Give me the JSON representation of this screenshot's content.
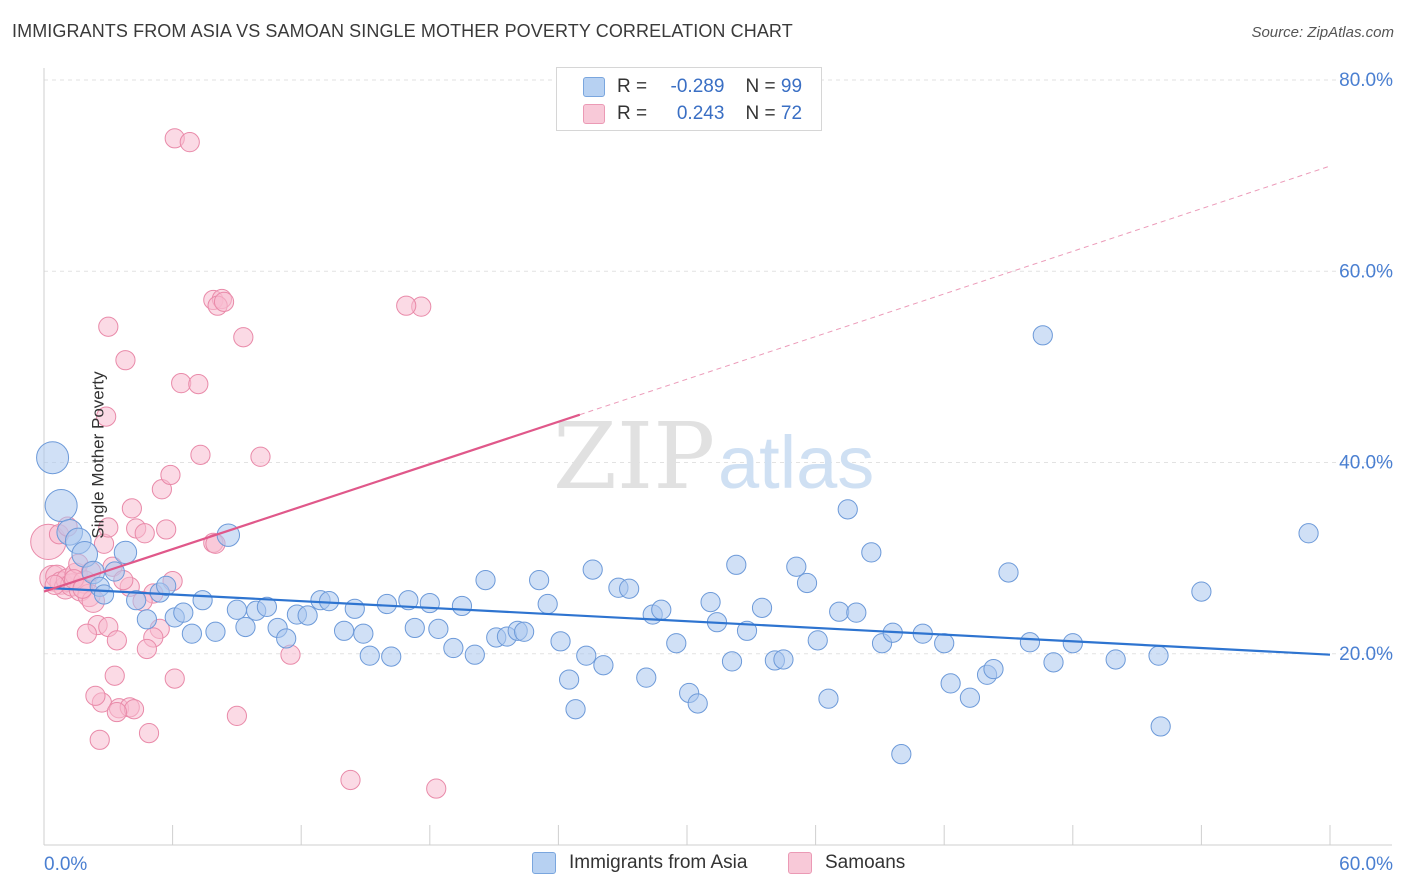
{
  "title": "IMMIGRANTS FROM ASIA VS SAMOAN SINGLE MOTHER POVERTY CORRELATION CHART",
  "source": "Source: ZipAtlas.com",
  "watermark": {
    "zip": "ZIP",
    "atlas": "atlas"
  },
  "legend": {
    "rows": [
      {
        "r_label": "R =",
        "r_value": "-0.289",
        "n_label": "N =",
        "n_value": "99"
      },
      {
        "r_label": "R =",
        "r_value": "0.243",
        "n_label": "N =",
        "n_value": "72"
      }
    ]
  },
  "bottom_legend": {
    "asia": "Immigrants from Asia",
    "samoans": "Samoans"
  },
  "colors": {
    "asia_fill": "#a9c7ef",
    "asia_stroke": "#6d9ad9",
    "asia_line": "#2e74d0",
    "samoa_fill": "#f7bccf",
    "samoa_stroke": "#e98aa9",
    "samoa_line": "#e0588a",
    "tick_label": "#4a7fd1",
    "grid": "#e2e2e2"
  },
  "chart_data": {
    "type": "scatter",
    "title": "IMMIGRANTS FROM ASIA VS SAMOAN SINGLE MOTHER POVERTY CORRELATION CHART",
    "xlabel": "",
    "ylabel": "Single Mother Poverty",
    "xlim": [
      0,
      60
    ],
    "ylim": [
      0,
      80
    ],
    "x_tick_labels": [
      "0.0%",
      "60.0%"
    ],
    "y_tick_labels": [
      "20.0%",
      "40.0%",
      "60.0%",
      "80.0%"
    ],
    "y_ticks": [
      20,
      40,
      60,
      80
    ],
    "grid": true,
    "legend_position": "top-center",
    "series": [
      {
        "name": "Immigrants from Asia",
        "trend": {
          "x": [
            0,
            60
          ],
          "y": [
            26.9,
            19.9
          ],
          "dashed_extension": false
        },
        "points": [
          [
            0.4,
            40.5,
            2
          ],
          [
            0.8,
            35.5,
            2
          ],
          [
            1.2,
            32.7,
            1.6
          ],
          [
            1.6,
            31.8,
            1.6
          ],
          [
            1.9,
            30.4,
            1.6
          ],
          [
            2.3,
            28.5,
            1.4
          ],
          [
            2.6,
            27,
            1.2
          ],
          [
            2.8,
            26.2,
            1.2
          ],
          [
            3.3,
            28.6,
            1.2
          ],
          [
            3.8,
            30.6,
            1.4
          ],
          [
            4.3,
            25.6,
            1.2
          ],
          [
            4.8,
            23.6,
            1.2
          ],
          [
            5.4,
            26.4,
            1.2
          ],
          [
            5.7,
            27.1,
            1.2
          ],
          [
            6.1,
            23.8,
            1.2
          ],
          [
            6.5,
            24.3,
            1.2
          ],
          [
            6.9,
            22.1,
            1.2
          ],
          [
            7.4,
            25.6,
            1.2
          ],
          [
            8.0,
            22.3,
            1.2
          ],
          [
            8.6,
            32.4,
            1.4
          ],
          [
            9.0,
            24.6,
            1.2
          ],
          [
            9.4,
            22.8,
            1.2
          ],
          [
            9.9,
            24.5,
            1.2
          ],
          [
            10.4,
            24.9,
            1.2
          ],
          [
            10.9,
            22.7,
            1.2
          ],
          [
            11.3,
            21.6,
            1.2
          ],
          [
            11.8,
            24.1,
            1.2
          ],
          [
            12.3,
            24,
            1.2
          ],
          [
            12.9,
            25.6,
            1.2
          ],
          [
            13.3,
            25.5,
            1.2
          ],
          [
            14.0,
            22.4,
            1.2
          ],
          [
            14.5,
            24.7,
            1.2
          ],
          [
            14.9,
            22.1,
            1.2
          ],
          [
            15.2,
            19.8,
            1.2
          ],
          [
            16.0,
            25.2,
            1.2
          ],
          [
            16.2,
            19.7,
            1.2
          ],
          [
            17.0,
            25.6,
            1.2
          ],
          [
            17.3,
            22.7,
            1.2
          ],
          [
            18.0,
            25.3,
            1.2
          ],
          [
            18.4,
            22.6,
            1.2
          ],
          [
            19.1,
            20.6,
            1.2
          ],
          [
            19.5,
            25,
            1.2
          ],
          [
            20.1,
            19.9,
            1.2
          ],
          [
            20.6,
            27.7,
            1.2
          ],
          [
            21.1,
            21.7,
            1.2
          ],
          [
            21.6,
            21.8,
            1.2
          ],
          [
            22.1,
            22.4,
            1.2
          ],
          [
            22.4,
            22.3,
            1.2
          ],
          [
            23.1,
            27.7,
            1.2
          ],
          [
            23.5,
            25.2,
            1.2
          ],
          [
            24.1,
            21.3,
            1.2
          ],
          [
            24.5,
            17.3,
            1.2
          ],
          [
            24.8,
            14.2,
            1.2
          ],
          [
            25.3,
            19.8,
            1.2
          ],
          [
            25.6,
            28.8,
            1.2
          ],
          [
            26.1,
            18.8,
            1.2
          ],
          [
            26.8,
            26.9,
            1.2
          ],
          [
            27.3,
            26.8,
            1.2
          ],
          [
            28.1,
            17.5,
            1.2
          ],
          [
            28.4,
            24.1,
            1.2
          ],
          [
            28.8,
            24.6,
            1.2
          ],
          [
            29.5,
            21.1,
            1.2
          ],
          [
            30.1,
            15.9,
            1.2
          ],
          [
            30.5,
            14.8,
            1.2
          ],
          [
            31.1,
            25.4,
            1.2
          ],
          [
            31.4,
            23.3,
            1.2
          ],
          [
            32.1,
            19.2,
            1.2
          ],
          [
            32.3,
            29.3,
            1.2
          ],
          [
            32.8,
            22.4,
            1.2
          ],
          [
            33.5,
            24.8,
            1.2
          ],
          [
            34.1,
            19.3,
            1.2
          ],
          [
            34.5,
            19.4,
            1.2
          ],
          [
            35.1,
            29.1,
            1.2
          ],
          [
            35.6,
            27.4,
            1.2
          ],
          [
            36.1,
            21.4,
            1.2
          ],
          [
            36.6,
            15.3,
            1.2
          ],
          [
            37.1,
            24.4,
            1.2
          ],
          [
            37.5,
            35.1,
            1.2
          ],
          [
            37.9,
            24.3,
            1.2
          ],
          [
            38.6,
            30.6,
            1.2
          ],
          [
            39.1,
            21.1,
            1.2
          ],
          [
            39.6,
            22.2,
            1.2
          ],
          [
            40.0,
            9.5,
            1.2
          ],
          [
            41.0,
            22.1,
            1.2
          ],
          [
            42.0,
            21.1,
            1.2
          ],
          [
            42.3,
            16.9,
            1.2
          ],
          [
            43.2,
            15.4,
            1.2
          ],
          [
            44.0,
            17.8,
            1.2
          ],
          [
            44.3,
            18.4,
            1.2
          ],
          [
            45.0,
            28.5,
            1.2
          ],
          [
            46.0,
            21.2,
            1.2
          ],
          [
            46.6,
            53.3,
            1.2
          ],
          [
            47.1,
            19.1,
            1.2
          ],
          [
            48.0,
            21.1,
            1.2
          ],
          [
            50.0,
            19.4,
            1.2
          ],
          [
            52.0,
            19.8,
            1.2
          ],
          [
            52.1,
            12.4,
            1.2
          ],
          [
            54.0,
            26.5,
            1.2
          ],
          [
            59.0,
            32.6,
            1.2
          ]
        ]
      },
      {
        "name": "Samoans",
        "trend": {
          "x": [
            0,
            25
          ],
          "y": [
            26.5,
            45
          ],
          "dashed_extension": true,
          "dashed_to": [
            60,
            71
          ]
        },
        "points": [
          [
            0.2,
            31.7,
            2.2
          ],
          [
            0.4,
            27.9,
            1.6
          ],
          [
            0.6,
            28.1,
            1.4
          ],
          [
            0.8,
            27.4,
            1.4
          ],
          [
            1.0,
            26.9,
            1.4
          ],
          [
            1.1,
            27.7,
            1.4
          ],
          [
            1.3,
            27.2,
            1.4
          ],
          [
            1.5,
            28.3,
            1.4
          ],
          [
            1.7,
            26.7,
            1.4
          ],
          [
            1.9,
            27.5,
            1.4
          ],
          [
            2.1,
            26.1,
            1.4
          ],
          [
            2.3,
            25.5,
            1.4
          ],
          [
            0.7,
            32.5,
            1.2
          ],
          [
            1.6,
            29.4,
            1.2
          ],
          [
            2.8,
            31.5,
            1.2
          ],
          [
            3.2,
            29.1,
            1.2
          ],
          [
            2.5,
            23,
            1.2
          ],
          [
            3.0,
            22.8,
            1.2
          ],
          [
            3.4,
            21.4,
            1.2
          ],
          [
            2.0,
            22.1,
            1.2
          ],
          [
            2.7,
            14.9,
            1.2
          ],
          [
            3.5,
            14.3,
            1.2
          ],
          [
            4.0,
            14.4,
            1.2
          ],
          [
            4.2,
            14.2,
            1.2
          ],
          [
            2.4,
            15.6,
            1.2
          ],
          [
            3.3,
            17.7,
            1.2
          ],
          [
            3.4,
            13.9,
            1.2
          ],
          [
            2.6,
            11,
            1.2
          ],
          [
            4.9,
            11.7,
            1.2
          ],
          [
            3.0,
            54.2,
            1.2
          ],
          [
            3.8,
            50.7,
            1.2
          ],
          [
            2.9,
            44.8,
            1.2
          ],
          [
            4.1,
            35.2,
            1.2
          ],
          [
            4.3,
            33.1,
            1.2
          ],
          [
            4.7,
            32.6,
            1.2
          ],
          [
            4.0,
            27,
            1.2
          ],
          [
            5.1,
            26.3,
            1.2
          ],
          [
            4.6,
            25.5,
            1.2
          ],
          [
            5.4,
            22.6,
            1.2
          ],
          [
            5.1,
            21.7,
            1.2
          ],
          [
            4.8,
            20.5,
            1.2
          ],
          [
            3.0,
            33.2,
            1.2
          ],
          [
            5.7,
            33,
            1.2
          ],
          [
            6.0,
            27.6,
            1.2
          ],
          [
            5.5,
            37.2,
            1.2
          ],
          [
            5.9,
            38.7,
            1.2
          ],
          [
            6.1,
            17.4,
            1.2
          ],
          [
            6.4,
            48.3,
            1.2
          ],
          [
            7.2,
            48.2,
            1.2
          ],
          [
            7.3,
            40.8,
            1.2
          ],
          [
            7.9,
            31.6,
            1.2
          ],
          [
            8.0,
            31.5,
            1.2
          ],
          [
            7.9,
            57,
            1.2
          ],
          [
            8.3,
            57.1,
            1.2
          ],
          [
            8.1,
            56.4,
            1.2
          ],
          [
            8.4,
            56.8,
            1.2
          ],
          [
            9.3,
            53.1,
            1.2
          ],
          [
            9.0,
            13.5,
            1.2
          ],
          [
            10.1,
            40.6,
            1.2
          ],
          [
            11.5,
            19.9,
            1.2
          ],
          [
            14.3,
            6.8,
            1.2
          ],
          [
            17.6,
            56.3,
            1.2
          ],
          [
            16.9,
            56.4,
            1.2
          ],
          [
            18.3,
            5.9,
            1.2
          ],
          [
            6.1,
            73.9,
            1.2
          ],
          [
            6.8,
            73.5,
            1.2
          ],
          [
            3.7,
            27.7,
            1.2
          ],
          [
            1.4,
            27.8,
            1.2
          ],
          [
            1.8,
            26.8,
            1.2
          ],
          [
            2.2,
            28.6,
            1.2
          ],
          [
            1.1,
            33.3,
            1.2
          ],
          [
            0.5,
            27.2,
            1.2
          ]
        ]
      }
    ]
  }
}
